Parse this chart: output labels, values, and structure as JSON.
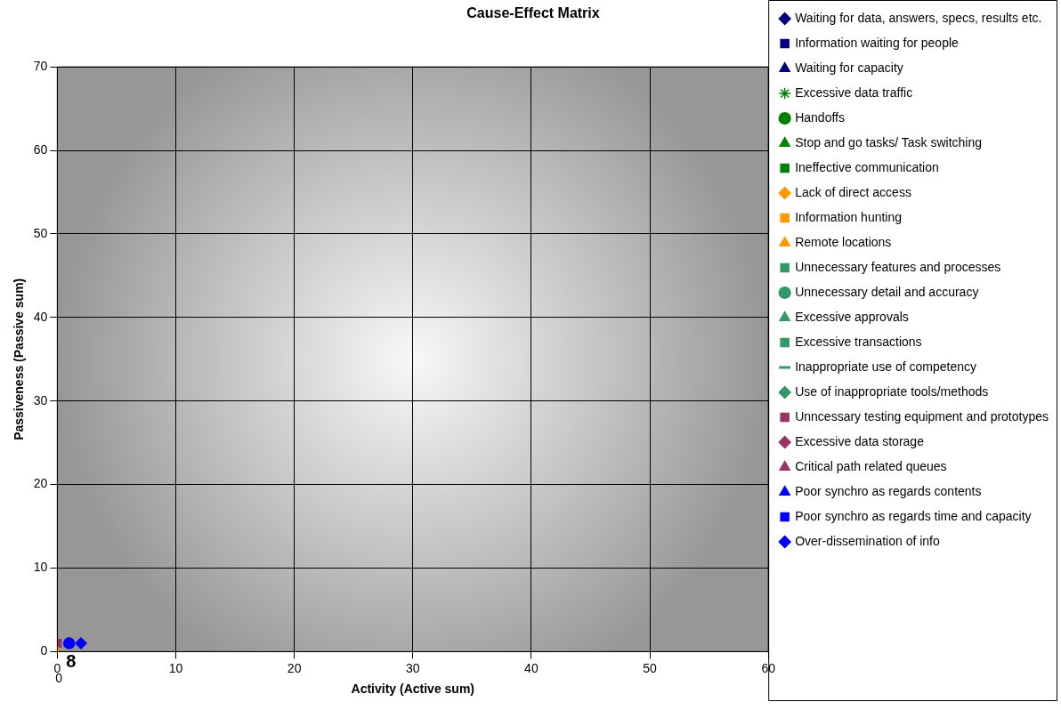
{
  "chart_data": {
    "type": "scatter",
    "title": "Cause-Effect Matrix",
    "xlabel": "Activity (Active sum)",
    "ylabel": "Passiveness (Passive sum)",
    "xlim": [
      0,
      60
    ],
    "xticks": [
      0,
      10,
      20,
      30,
      40,
      50,
      60
    ],
    "ylim": [
      0,
      70
    ],
    "yticks": [
      0,
      10,
      20,
      30,
      40,
      50,
      60,
      70
    ],
    "grid": true,
    "legend": "right",
    "annotations": [
      "8",
      "0"
    ],
    "series": [
      {
        "name": "Waiting for data, answers, specs, results etc.",
        "color": "#000080",
        "marker": "diamond"
      },
      {
        "name": "Information waiting for people",
        "color": "#000080",
        "marker": "square"
      },
      {
        "name": "Waiting for capacity",
        "color": "#000080",
        "marker": "triangle"
      },
      {
        "name": "Excessive data traffic",
        "color": "#008000",
        "marker": "star"
      },
      {
        "name": "Handoffs",
        "color": "#008000",
        "marker": "circle"
      },
      {
        "name": "Stop and go tasks/ Task switching",
        "color": "#008000",
        "marker": "triangle"
      },
      {
        "name": "Ineffective communication",
        "color": "#008000",
        "marker": "square"
      },
      {
        "name": "Lack of direct access",
        "color": "#ff9900",
        "marker": "diamond"
      },
      {
        "name": "Information hunting",
        "color": "#ff9900",
        "marker": "square"
      },
      {
        "name": "Remote locations",
        "color": "#ff9900",
        "marker": "triangle",
        "x": [
          0
        ],
        "values": [
          0
        ]
      },
      {
        "name": "Unnecessary features and processes",
        "color": "#339966",
        "marker": "square"
      },
      {
        "name": "Unnecessary detail and accuracy",
        "color": "#339966",
        "marker": "circle"
      },
      {
        "name": "Excessive approvals",
        "color": "#339966",
        "marker": "triangle"
      },
      {
        "name": "Excessive transactions",
        "color": "#339966",
        "marker": "square"
      },
      {
        "name": "Inappropriate use of competency",
        "color": "#339966",
        "marker": "dash"
      },
      {
        "name": "Use of inappropriate tools/methods",
        "color": "#339966",
        "marker": "diamond"
      },
      {
        "name": "Unncessary testing equipment and prototypes",
        "color": "#993366",
        "marker": "square",
        "x": [
          0
        ],
        "values": [
          1
        ]
      },
      {
        "name": "Excessive data storage",
        "color": "#993366",
        "marker": "diamond"
      },
      {
        "name": "Critical path related queues",
        "color": "#993366",
        "marker": "triangle",
        "x": [
          0
        ],
        "values": [
          0
        ]
      },
      {
        "name": "Poor synchro as regards contents",
        "color": "#0000ff",
        "marker": "triangle"
      },
      {
        "name": "Poor synchro as regards time and capacity",
        "color": "#0000ff",
        "marker": "square"
      },
      {
        "name": "Over-dissemination of info",
        "color": "#0000ff",
        "marker": "diamond",
        "x": [
          2
        ],
        "values": [
          1
        ]
      },
      {
        "color": "#0000ff",
        "marker": "circle",
        "x": [
          1
        ],
        "values": [
          1
        ]
      }
    ]
  }
}
